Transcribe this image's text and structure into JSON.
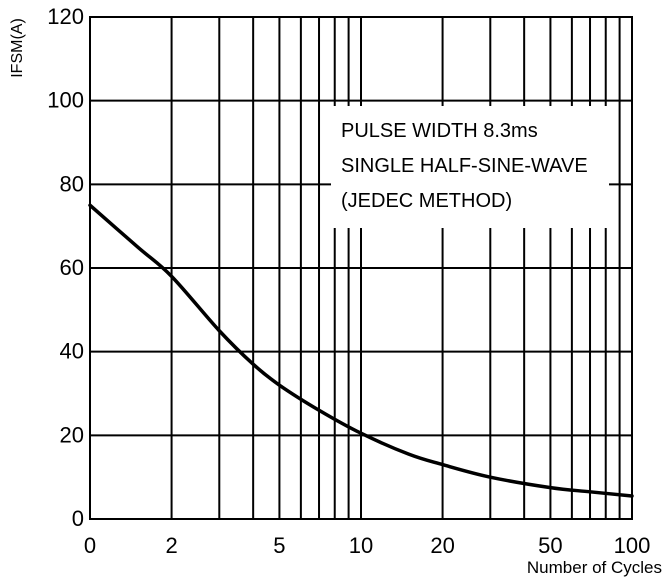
{
  "chart_data": {
    "type": "line",
    "title": "",
    "xlabel": "Number of Cycles",
    "ylabel": "IFSM(A)",
    "x_scale": "log",
    "xlim": [
      1,
      100
    ],
    "ylim": [
      0,
      120
    ],
    "x_ticks": [
      {
        "value": 1,
        "label": "0"
      },
      {
        "value": 2,
        "label": "2"
      },
      {
        "value": 5,
        "label": "5"
      },
      {
        "value": 10,
        "label": "10"
      },
      {
        "value": 20,
        "label": "20"
      },
      {
        "value": 50,
        "label": "50"
      },
      {
        "value": 100,
        "label": "100"
      }
    ],
    "y_ticks": [
      0,
      20,
      40,
      60,
      80,
      100,
      120
    ],
    "y_tick_labels": [
      "0",
      "20",
      "40",
      "60",
      "80",
      "100",
      "120"
    ],
    "grid": true,
    "annotations": [
      "PULSE WIDTH 8.3ms",
      "SINGLE HALF-SINE-WAVE",
      "(JEDEC METHOD)"
    ],
    "series": [
      {
        "color": "#000000",
        "x": [
          1,
          1.5,
          2,
          3,
          4,
          5,
          7,
          10,
          15,
          20,
          30,
          50,
          70,
          100
        ],
        "y": [
          75,
          65,
          58,
          45,
          37,
          32,
          26,
          20.5,
          15.5,
          13,
          10,
          7.5,
          6.5,
          5.5
        ]
      }
    ]
  }
}
